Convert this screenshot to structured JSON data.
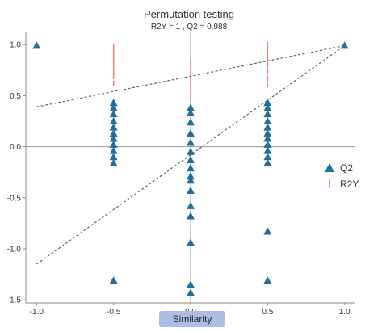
{
  "chart_data": {
    "type": "scatter",
    "title": "Permutation testing",
    "subtitle": "R2Y = 1 ,  Q2 = 0.988",
    "xlabel": "Similarity",
    "ylabel": "",
    "xlim": [
      -1.07,
      1.07
    ],
    "ylim": [
      -1.53,
      1.12
    ],
    "xticks": [
      -1.0,
      -0.5,
      0.0,
      0.5,
      1.0
    ],
    "xtick_labels": [
      "-1.0",
      "-0.5",
      "0.0",
      "0.5",
      "1.0"
    ],
    "yticks": [
      1.0,
      0.5,
      0.0,
      -0.5,
      -1.0,
      -1.5
    ],
    "ytick_labels": [
      "1.0",
      "0.5",
      "0.0",
      "-0.5",
      "-1.0",
      "-1.5"
    ],
    "grid": false,
    "legend_position": "right",
    "series": [
      {
        "name": "Q2",
        "marker": "triangle",
        "color": "#1f6e9c",
        "points": [
          [
            -1.0,
            0.99
          ],
          [
            1.0,
            0.99
          ],
          [
            -0.5,
            0.43
          ],
          [
            -0.5,
            0.38
          ],
          [
            -0.5,
            0.32
          ],
          [
            -0.5,
            0.25
          ],
          [
            -0.5,
            0.19
          ],
          [
            -0.5,
            0.13
          ],
          [
            -0.5,
            0.08
          ],
          [
            -0.5,
            0.02
          ],
          [
            -0.5,
            -0.04
          ],
          [
            -0.5,
            -0.1
          ],
          [
            -0.5,
            -0.16
          ],
          [
            -0.5,
            -1.31
          ],
          [
            0.0,
            0.38
          ],
          [
            0.0,
            0.33
          ],
          [
            0.0,
            0.24
          ],
          [
            0.0,
            0.13
          ],
          [
            0.0,
            0.04
          ],
          [
            0.0,
            -0.05
          ],
          [
            0.0,
            -0.13
          ],
          [
            0.0,
            -0.21
          ],
          [
            0.0,
            -0.29
          ],
          [
            0.0,
            -0.33
          ],
          [
            0.0,
            -0.43
          ],
          [
            0.0,
            -0.58
          ],
          [
            0.0,
            -0.68
          ],
          [
            0.0,
            -0.94
          ],
          [
            0.0,
            -1.35
          ],
          [
            0.0,
            -1.43
          ],
          [
            0.5,
            0.43
          ],
          [
            0.5,
            0.38
          ],
          [
            0.5,
            0.32
          ],
          [
            0.5,
            0.25
          ],
          [
            0.5,
            0.19
          ],
          [
            0.5,
            0.13
          ],
          [
            0.5,
            0.08
          ],
          [
            0.5,
            0.02
          ],
          [
            0.5,
            -0.04
          ],
          [
            0.5,
            -0.1
          ],
          [
            0.5,
            -0.16
          ],
          [
            0.5,
            -0.83
          ],
          [
            0.5,
            -1.31
          ]
        ]
      },
      {
        "name": "R2Y",
        "marker": "vertical-dash",
        "color": "#e8827a",
        "points": [
          [
            -1.0,
            1.0
          ],
          [
            -0.5,
            0.98
          ],
          [
            -0.5,
            0.93
          ],
          [
            -0.5,
            0.88
          ],
          [
            -0.5,
            0.83
          ],
          [
            -0.5,
            0.78
          ],
          [
            -0.5,
            0.74
          ],
          [
            -0.5,
            0.69
          ],
          [
            -0.5,
            0.62
          ],
          [
            0.0,
            0.84
          ],
          [
            0.0,
            0.79
          ],
          [
            0.0,
            0.73
          ],
          [
            0.0,
            0.66
          ],
          [
            0.0,
            0.6
          ],
          [
            0.0,
            0.54
          ],
          [
            0.0,
            0.49
          ],
          [
            0.0,
            0.43
          ],
          [
            0.0,
            0.37
          ],
          [
            0.5,
            1.0
          ],
          [
            0.5,
            0.96
          ],
          [
            0.5,
            0.91
          ],
          [
            0.5,
            0.86
          ],
          [
            0.5,
            0.8
          ],
          [
            0.5,
            0.74
          ],
          [
            0.5,
            0.67
          ],
          [
            0.5,
            0.61
          ]
        ]
      }
    ],
    "reference_lines": [
      {
        "label": "Q2 regression",
        "x": [
          -1.0,
          1.0
        ],
        "y": [
          -1.15,
          0.99
        ]
      },
      {
        "label": "R2Y regression",
        "x": [
          -1.0,
          1.0
        ],
        "y": [
          0.39,
          0.99
        ]
      }
    ]
  },
  "legend": {
    "q2_label": "Q2",
    "r2y_label": "R2Y"
  },
  "colors": {
    "q2": "#1f6e9c",
    "r2y": "#e8827a",
    "axes": "#888888",
    "dashed": "#555555"
  }
}
